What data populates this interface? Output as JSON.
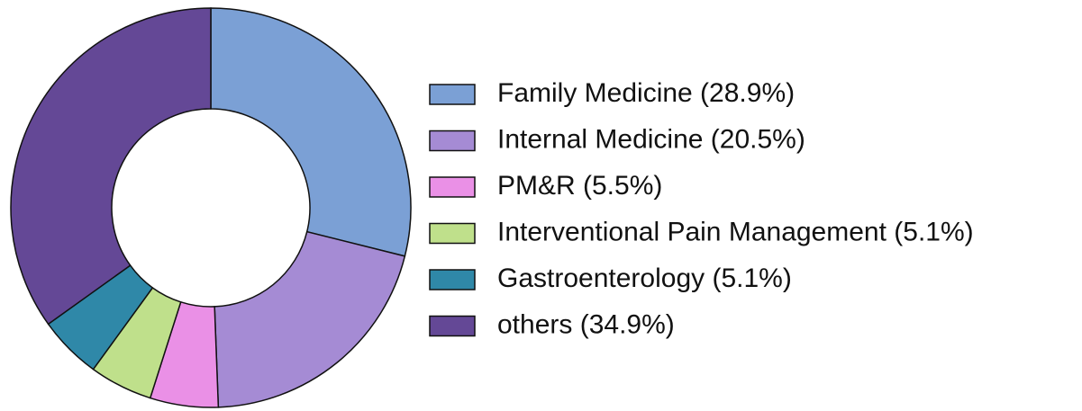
{
  "chart_data": {
    "type": "donut",
    "categories": [
      "Family Medicine (28.9%)",
      "Internal Medicine (20.5%)",
      "PM&R (5.5%)",
      "Interventional Pain Management (5.1%)",
      "Gastroenterology (5.1%)",
      "others (34.9%)"
    ],
    "values": [
      28.9,
      20.5,
      5.5,
      5.1,
      5.1,
      34.9
    ],
    "colors": [
      "#7ba0d5",
      "#a58bd4",
      "#ea90e6",
      "#bfe08b",
      "#2f88a8",
      "#644896"
    ],
    "legend": "right"
  }
}
